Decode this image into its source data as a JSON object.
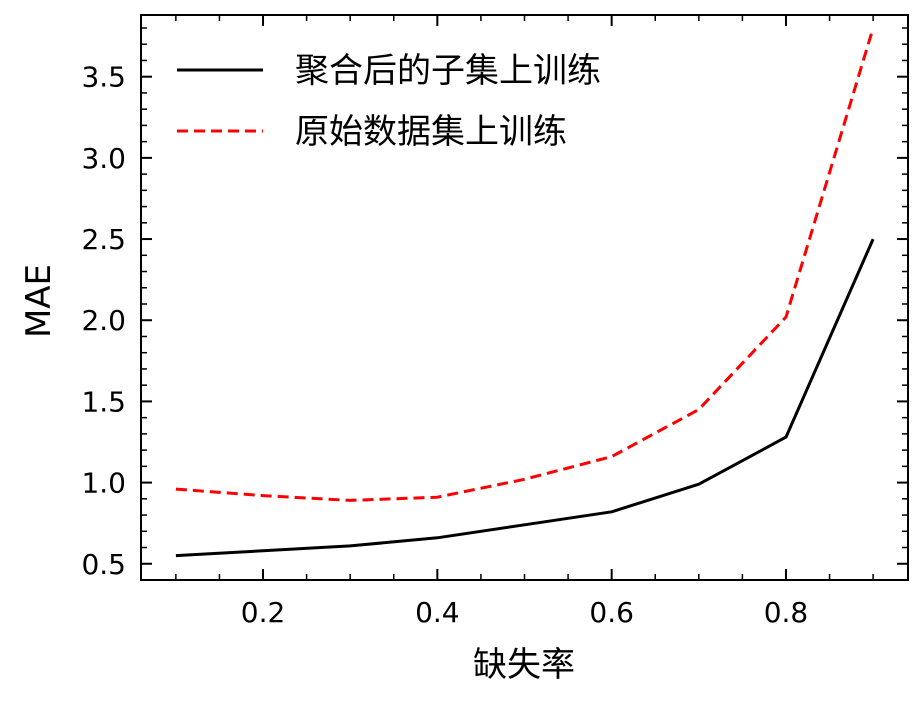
{
  "chart_data": {
    "type": "line",
    "xlabel": "缺失率",
    "ylabel": "MAE",
    "xlim": [
      0.06,
      0.94
    ],
    "ylim": [
      0.4,
      3.88
    ],
    "x_major_ticks": [
      0.2,
      0.4,
      0.6,
      0.8
    ],
    "x_tick_labels": [
      "0.2",
      "0.4",
      "0.6",
      "0.8"
    ],
    "x_minor_step": 0.05,
    "y_major_ticks": [
      0.5,
      1.0,
      1.5,
      2.0,
      2.5,
      3.0,
      3.5
    ],
    "y_tick_labels": [
      "0.5",
      "1.0",
      "1.5",
      "2.0",
      "2.5",
      "3.0",
      "3.5"
    ],
    "y_minor_step": 0.1,
    "grid": false,
    "legend_position": "top-left",
    "x": [
      0.1,
      0.2,
      0.3,
      0.4,
      0.5,
      0.6,
      0.7,
      0.8,
      0.9
    ],
    "series": [
      {
        "name": "聚合后的子集上训练",
        "color": "#000000",
        "style": "solid",
        "values": [
          0.55,
          0.58,
          0.61,
          0.66,
          0.74,
          0.82,
          0.99,
          1.28,
          2.5
        ]
      },
      {
        "name": "原始数据集上训练",
        "color": "#ff0000",
        "style": "dashed",
        "values": [
          0.96,
          0.92,
          0.89,
          0.91,
          1.02,
          1.16,
          1.45,
          2.02,
          3.8
        ]
      }
    ]
  }
}
